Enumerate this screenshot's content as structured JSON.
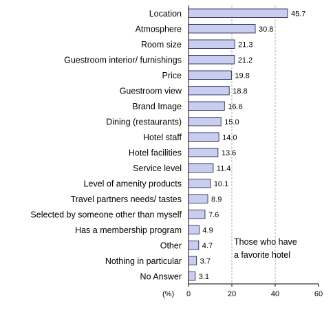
{
  "chart_data": {
    "type": "bar",
    "orientation": "horizontal",
    "categories": [
      "Location",
      "Atmosphere",
      "Room size",
      "Guestroom interior/ furnishings",
      "Price",
      "Guestroom view",
      "Brand Image",
      "Dining (restaurants)",
      "Hotel staff",
      "Hotel facilities",
      "Service level",
      "Level of amenity products",
      "Travel partners needs/ tastes",
      "Selected by someone other than myself",
      "Has a membership program",
      "Other",
      "Nothing in particular",
      "No Answer"
    ],
    "values": [
      45.7,
      30.8,
      21.3,
      21.2,
      19.8,
      18.8,
      16.6,
      15.0,
      14.0,
      13.6,
      11.4,
      10.1,
      8.9,
      7.6,
      4.9,
      4.7,
      3.7,
      3.1
    ],
    "value_labels": [
      "45.7",
      "30.8",
      "21.3",
      "21.2",
      "19.8",
      "18.8",
      "16.6",
      "15.0",
      "14.0",
      "13.6",
      "11.4",
      "10.1",
      "8.9",
      "7.6",
      "4.9",
      "4.7",
      "3.7",
      "3.1"
    ],
    "xlim": [
      0,
      60
    ],
    "xticks": [
      0,
      20,
      40,
      60
    ],
    "xtick_labels": [
      "0",
      "20",
      "40",
      "60"
    ],
    "unit_label": "(%)",
    "annotation_lines": [
      "Those who have",
      "a favorite hotel"
    ],
    "grid": "vertical dashed at 20 and 40",
    "bar_fill": "#c9cdf0",
    "bar_stroke": "#2b2b55"
  }
}
